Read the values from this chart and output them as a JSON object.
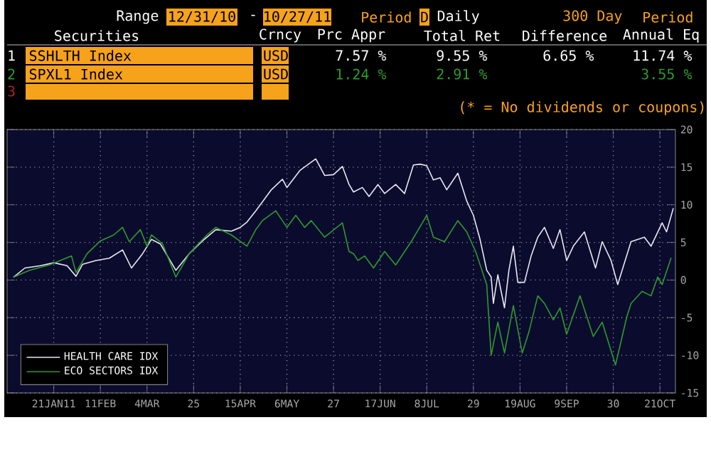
{
  "chart_data": {
    "type": "line",
    "annotations": [
      "Range",
      "12/31/10",
      "-",
      "10/27/11",
      "Period",
      "D",
      "Daily",
      "300 Day",
      "Period",
      "Securities",
      "Crncy",
      "Prc Appr",
      "Total Ret",
      "Difference",
      "Annual Eq",
      "1",
      "SSHLTH Index",
      "USD",
      "7.57 %",
      "9.55 %",
      "6.65 %",
      "11.74 %",
      "2",
      "SPXL1 Index",
      "USD",
      "1.24 %",
      "2.91 %",
      "3.55 %",
      "3",
      "(* = No dividends or coupons)"
    ],
    "xlim": [
      "2010-12-31",
      "2011-10-28"
    ],
    "xticks": [
      {
        "value": "2011-01-21",
        "label": "21JAN11"
      },
      {
        "value": "2011-02-11",
        "label": "11FEB"
      },
      {
        "value": "2011-03-04",
        "label": "4MAR"
      },
      {
        "value": "2011-03-25",
        "label": "25"
      },
      {
        "value": "2011-04-15",
        "label": "15APR"
      },
      {
        "value": "2011-05-06",
        "label": "6MAY"
      },
      {
        "value": "2011-05-27",
        "label": "27"
      },
      {
        "value": "2011-06-17",
        "label": "17JUN"
      },
      {
        "value": "2011-07-08",
        "label": "8JUL"
      },
      {
        "value": "2011-07-29",
        "label": "29"
      },
      {
        "value": "2011-08-19",
        "label": "19AUG"
      },
      {
        "value": "2011-09-09",
        "label": "9SEP"
      },
      {
        "value": "2011-09-30",
        "label": "30"
      },
      {
        "value": "2011-10-21",
        "label": "21OCT"
      }
    ],
    "ylim": [
      -15,
      20
    ],
    "yticks": [
      -15,
      -10,
      -5,
      0,
      5,
      10,
      15,
      20
    ],
    "grid": true,
    "legend": "bottom left",
    "marker": "none",
    "line_style": "solid",
    "series": [
      {
        "name": "HEALTH CARE IDX",
        "color": "#e8e8f0",
        "x": [
          "2011-01-03",
          "2011-01-08",
          "2011-01-15",
          "2011-01-21",
          "2011-01-27",
          "2011-01-31",
          "2011-02-03",
          "2011-02-09",
          "2011-02-15",
          "2011-02-21",
          "2011-02-25",
          "2011-03-02",
          "2011-03-06",
          "2011-03-10",
          "2011-03-17",
          "2011-03-23",
          "2011-03-29",
          "2011-04-04",
          "2011-04-11",
          "2011-04-15",
          "2011-04-18",
          "2011-04-22",
          "2011-04-29",
          "2011-05-04",
          "2011-05-06",
          "2011-05-12",
          "2011-05-19",
          "2011-05-23",
          "2011-05-27",
          "2011-05-31",
          "2011-06-03",
          "2011-06-05",
          "2011-06-09",
          "2011-06-12",
          "2011-06-16",
          "2011-06-19",
          "2011-06-24",
          "2011-06-28",
          "2011-07-02",
          "2011-07-05",
          "2011-07-08",
          "2011-07-11",
          "2011-07-14",
          "2011-07-17",
          "2011-07-22",
          "2011-07-26",
          "2011-07-29",
          "2011-08-01",
          "2011-08-04",
          "2011-08-06",
          "2011-08-07",
          "2011-08-09",
          "2011-08-12",
          "2011-08-14",
          "2011-08-16",
          "2011-08-18",
          "2011-08-21",
          "2011-08-24",
          "2011-08-27",
          "2011-08-30",
          "2011-09-03",
          "2011-09-06",
          "2011-09-09",
          "2011-09-12",
          "2011-09-17",
          "2011-09-22",
          "2011-09-25",
          "2011-09-29",
          "2011-10-02",
          "2011-10-06",
          "2011-10-08",
          "2011-10-14",
          "2011-10-17",
          "2011-10-22",
          "2011-10-24",
          "2011-10-27"
        ],
        "values": [
          0.4,
          1.6,
          1.9,
          2.3,
          1.9,
          0.5,
          2.1,
          2.6,
          2.9,
          4.0,
          1.6,
          3.5,
          5.4,
          4.8,
          1.3,
          3.5,
          5.2,
          6.7,
          6.5,
          7.0,
          7.7,
          9.2,
          12.0,
          13.4,
          12.3,
          14.6,
          16.1,
          13.9,
          14.0,
          15.1,
          12.7,
          11.7,
          12.3,
          11.1,
          12.7,
          11.5,
          12.7,
          11.5,
          15.3,
          15.4,
          15.2,
          13.3,
          13.6,
          12.0,
          14.2,
          10.5,
          8.6,
          5.4,
          1.3,
          0.4,
          -3.1,
          0.7,
          -3.7,
          1.3,
          4.5,
          -0.3,
          -0.3,
          3.2,
          5.7,
          7.0,
          4.2,
          6.7,
          2.6,
          4.5,
          6.4,
          1.6,
          5.1,
          2.6,
          -0.6,
          3.2,
          5.1,
          5.7,
          4.5,
          7.6,
          6.4,
          9.5
        ]
      },
      {
        "name": "ECO SECTORS IDX",
        "color": "#2e9a2e",
        "x": [
          "2011-01-03",
          "2011-01-10",
          "2011-01-19",
          "2011-01-29",
          "2011-01-31",
          "2011-02-05",
          "2011-02-11",
          "2011-02-17",
          "2011-02-21",
          "2011-02-24",
          "2011-03-01",
          "2011-03-04",
          "2011-03-06",
          "2011-03-11",
          "2011-03-17",
          "2011-03-23",
          "2011-03-31",
          "2011-04-04",
          "2011-04-11",
          "2011-04-18",
          "2011-04-22",
          "2011-04-25",
          "2011-05-01",
          "2011-05-06",
          "2011-05-10",
          "2011-05-14",
          "2011-05-17",
          "2011-05-23",
          "2011-05-31",
          "2011-06-03",
          "2011-06-05",
          "2011-06-07",
          "2011-06-10",
          "2011-06-14",
          "2011-06-19",
          "2011-06-24",
          "2011-07-01",
          "2011-07-06",
          "2011-07-08",
          "2011-07-11",
          "2011-07-16",
          "2011-07-22",
          "2011-07-26",
          "2011-07-30",
          "2011-08-04",
          "2011-08-06",
          "2011-08-09",
          "2011-08-12",
          "2011-08-16",
          "2011-08-20",
          "2011-08-23",
          "2011-08-27",
          "2011-08-30",
          "2011-09-03",
          "2011-09-06",
          "2011-09-09",
          "2011-09-15",
          "2011-09-21",
          "2011-09-25",
          "2011-10-01",
          "2011-10-06",
          "2011-10-08",
          "2011-10-13",
          "2011-10-17",
          "2011-10-20",
          "2011-10-22",
          "2011-10-26"
        ],
        "values": [
          0.4,
          1.3,
          2.0,
          3.2,
          1.0,
          3.5,
          5.2,
          6.0,
          7.0,
          5.1,
          6.7,
          4.5,
          6.0,
          4.8,
          0.4,
          3.5,
          6.0,
          7.0,
          6.0,
          4.5,
          6.7,
          7.9,
          9.2,
          7.0,
          8.6,
          7.0,
          7.9,
          5.7,
          7.6,
          3.8,
          3.5,
          2.6,
          3.2,
          1.6,
          3.8,
          2.0,
          5.1,
          7.6,
          8.6,
          5.7,
          5.1,
          7.9,
          6.4,
          3.8,
          -0.6,
          -10.0,
          -5.6,
          -9.7,
          -3.4,
          -9.7,
          -6.9,
          -2.1,
          -3.1,
          -5.3,
          -3.7,
          -7.2,
          -2.1,
          -7.5,
          -5.6,
          -11.3,
          -5.0,
          -3.1,
          -1.5,
          -2.1,
          0.4,
          -0.6,
          2.9
        ]
      }
    ]
  }
}
